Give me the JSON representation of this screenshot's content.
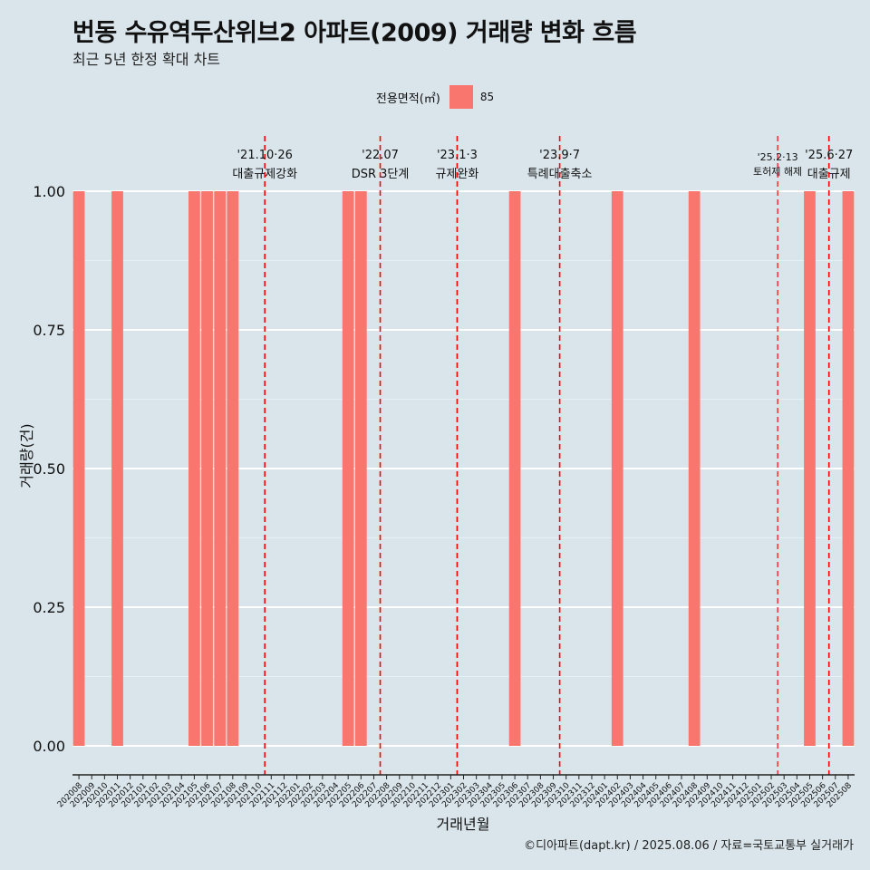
{
  "title": "번동 수유역두산위브2 아파트(2009) 거래량 변화 흐름",
  "subtitle": "최근 5년 한정 확대 차트",
  "caption": "©디아파트(dapt.kr) / 2025.08.06 / 자료=국토교통부 실거래가",
  "colors": {
    "bar": "#f8766d",
    "background": "#d9e5eb",
    "grid": "#ffffff",
    "event_line": "#ff0000"
  },
  "chart_data": {
    "type": "bar",
    "xlabel": "거래년월",
    "ylabel": "거래량(건)",
    "ylim": [
      0,
      1
    ],
    "yticks": [
      "0.00",
      "0.25",
      "0.50",
      "0.75",
      "1.00"
    ],
    "legend": {
      "title": "전용면적(㎡)",
      "entries": [
        "85"
      ],
      "position": "top"
    },
    "grid": true,
    "categories": [
      "202008",
      "202009",
      "202010",
      "202011",
      "202012",
      "202101",
      "202102",
      "202103",
      "202104",
      "202105",
      "202106",
      "202107",
      "202108",
      "202109",
      "202110",
      "202111",
      "202112",
      "202201",
      "202202",
      "202203",
      "202204",
      "202205",
      "202206",
      "202207",
      "202208",
      "202209",
      "202210",
      "202211",
      "202212",
      "202301",
      "202302",
      "202303",
      "202304",
      "202305",
      "202306",
      "202307",
      "202308",
      "202309",
      "202310",
      "202311",
      "202312",
      "202401",
      "202402",
      "202403",
      "202404",
      "202405",
      "202406",
      "202407",
      "202408",
      "202409",
      "202410",
      "202411",
      "202412",
      "202501",
      "202502",
      "202503",
      "202504",
      "202505",
      "202506",
      "202507",
      "202508"
    ],
    "series": [
      {
        "name": "85",
        "values": [
          1,
          0,
          0,
          1,
          0,
          0,
          0,
          0,
          0,
          1,
          1,
          1,
          1,
          0,
          0,
          0,
          0,
          0,
          0,
          0,
          0,
          1,
          1,
          0,
          0,
          0,
          0,
          0,
          0,
          0,
          0,
          0,
          0,
          0,
          1,
          0,
          0,
          0,
          0,
          0,
          0,
          0,
          1,
          0,
          0,
          0,
          0,
          0,
          1,
          0,
          0,
          0,
          0,
          0,
          0,
          0,
          0,
          1,
          0,
          0,
          1
        ]
      }
    ],
    "events": [
      {
        "date": "'21.10·26",
        "label": "대출규제강화",
        "x_index": 14.5
      },
      {
        "date": "'22.07",
        "label": "DSR 3단계",
        "x_index": 23.5
      },
      {
        "date": "'23.1·3",
        "label": "규제완화",
        "x_index": 29.5
      },
      {
        "date": "'23.9·7",
        "label": "특례대출축소",
        "x_index": 37.5
      },
      {
        "date": "'25.2·13",
        "label": "토허제 해제",
        "x_index": 54.5,
        "small": true
      },
      {
        "date": "'25.6·27",
        "label": "대출규제",
        "x_index": 58.5
      }
    ]
  }
}
